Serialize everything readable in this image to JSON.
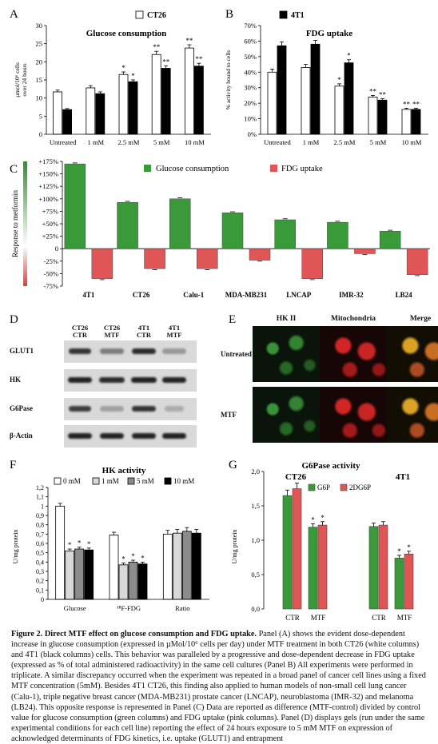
{
  "panelA": {
    "letter": "A",
    "title": "Glucose consumption",
    "legend": "CT26",
    "ylabel_lines": [
      "µmol/10⁶ cells",
      "over 24 hours"
    ],
    "yticks": [
      "0",
      "5",
      "10",
      "15",
      "20",
      "25",
      "30"
    ],
    "chart_data": {
      "type": "bar",
      "categories": [
        "Untreated",
        "1 mM",
        "2.5 mM",
        "5 mM",
        "10 mM"
      ],
      "series": [
        {
          "name": "CT26",
          "color": "#ffffff",
          "values": [
            11.7,
            12.8,
            16.5,
            22.0,
            23.8
          ],
          "err": [
            0.5,
            0.6,
            0.7,
            0.9,
            0.9
          ],
          "stars": [
            "",
            "",
            "*",
            "**",
            "**"
          ]
        },
        {
          "color": "#000000",
          "values": [
            6.8,
            11.2,
            14.5,
            18.2,
            18.8
          ],
          "err": [
            0.3,
            0.5,
            0.5,
            0.7,
            0.8
          ],
          "stars": [
            "",
            "",
            "*",
            "**",
            "**"
          ]
        }
      ],
      "ylim": [
        0,
        30
      ]
    }
  },
  "panelB": {
    "letter": "B",
    "title": "FDG uptake",
    "legend": "4T1",
    "ylabel": "% activity bound to cells",
    "yticks": [
      "0%",
      "5%",
      "10%",
      "15%",
      "20%",
      "25%",
      "30%",
      "35%",
      "40%",
      "45%",
      "50%",
      "55%",
      "60%",
      "65%",
      "70%"
    ],
    "yticks_shown": [
      "0%",
      "10%",
      "20%",
      "30%",
      "40%",
      "50%",
      "60%",
      "70%"
    ],
    "chart_data": {
      "type": "bar",
      "categories": [
        "Untreated",
        "1 mM",
        "2.5 mM",
        "5 mM",
        "10 mM"
      ],
      "series": [
        {
          "color": "#ffffff",
          "values": [
            40,
            43,
            31,
            24,
            16
          ],
          "err": [
            2,
            2,
            1.5,
            1,
            0.8
          ],
          "stars": [
            "",
            "",
            "*",
            "**",
            "**"
          ]
        },
        {
          "name": "4T1",
          "color": "#000000",
          "values": [
            57,
            58,
            46,
            22,
            16
          ],
          "err": [
            2.5,
            2.5,
            2,
            1,
            0.8
          ],
          "stars": [
            "",
            "",
            "*",
            "**",
            "**"
          ]
        }
      ],
      "ylim": [
        0,
        70
      ]
    }
  },
  "panelC": {
    "letter": "C",
    "legend_green": "Glucose consumption",
    "legend_red": "FDG uptake",
    "ylabel": "Response to metformin",
    "yticks": [
      "+175%",
      "+150%",
      "+125%",
      "+100%",
      "+75%",
      "+50%",
      "+25%",
      "0",
      "-25%",
      "-50%",
      "-75%"
    ],
    "chart_data": {
      "type": "bar",
      "categories": [
        "4T1",
        "CT26",
        "Calu-1",
        "MDA-MB231",
        "LNCAP",
        "IMR-32",
        "LB24"
      ],
      "series": [
        {
          "name": "Glucose consumption",
          "color": "#3a9a3a",
          "values": [
            170,
            93,
            100,
            72,
            58,
            53,
            35
          ]
        },
        {
          "name": "FDG uptake",
          "color": "#e05555",
          "values": [
            -60,
            -40,
            -40,
            -23,
            -60,
            -10,
            -52
          ]
        }
      ],
      "ylim": [
        -75,
        175
      ]
    }
  },
  "panelD": {
    "letter": "D",
    "columns": [
      "CT26\nCTR",
      "CT26\nMTF",
      "4T1\nCTR",
      "4T1\nMTF"
    ],
    "col_top": [
      "CT26",
      "CT26",
      "4T1",
      "4T1"
    ],
    "col_bot": [
      "CTR",
      "MTF",
      "CTR",
      "MTF"
    ],
    "rows": [
      "GLUT1",
      "HK",
      "G6Pase",
      "β-Actin"
    ]
  },
  "panelE": {
    "letter": "E",
    "col_labels": [
      "HK II",
      "Mitochondria",
      "Merge"
    ],
    "row_labels": [
      "Untreated",
      "MTF"
    ]
  },
  "panelF": {
    "letter": "F",
    "title": "HK activity",
    "ylabel": "U/mg protein",
    "yticks": [
      "0",
      "0,1",
      "0,2",
      "0,3",
      "0,4",
      "0,5",
      "0,6",
      "0,7",
      "0,8",
      "0,9",
      "1",
      "1,1",
      "1,2"
    ],
    "legend": [
      "0 mM",
      "1 mM",
      "5 mM",
      "10 mM"
    ],
    "chart_data": {
      "type": "bar",
      "categories": [
        "Glucose",
        "¹⁸F-FDG",
        "Ratio"
      ],
      "series": [
        {
          "name": "0 mM",
          "color": "#ffffff",
          "values": [
            1.0,
            0.69,
            0.7
          ],
          "err": [
            0.03,
            0.03,
            0.04
          ],
          "stars": [
            "",
            "",
            ""
          ]
        },
        {
          "name": "1 mM",
          "color": "#d9d9d9",
          "values": [
            0.52,
            0.37,
            0.71
          ],
          "err": [
            0.02,
            0.02,
            0.04
          ],
          "stars": [
            "*",
            "*",
            ""
          ]
        },
        {
          "name": "5 mM",
          "color": "#8c8c8c",
          "values": [
            0.54,
            0.4,
            0.73
          ],
          "err": [
            0.02,
            0.02,
            0.04
          ],
          "stars": [
            "*",
            "*",
            ""
          ]
        },
        {
          "name": "10 mM",
          "color": "#000000",
          "values": [
            0.53,
            0.38,
            0.71
          ],
          "err": [
            0.02,
            0.02,
            0.04
          ],
          "stars": [
            "*",
            "*",
            ""
          ]
        }
      ],
      "ylim": [
        0,
        1.2
      ]
    }
  },
  "panelG": {
    "letter": "G",
    "title": "G6Pase activity",
    "group_left": "CT26",
    "group_right": "4T1",
    "ylabel": "U/mg protein",
    "yticks": [
      "0,0",
      "0,5",
      "1,0",
      "1,5",
      "2,0"
    ],
    "legend": [
      "G6P",
      "2DG6P"
    ],
    "chart_data": {
      "type": "bar",
      "categories": [
        "CTR",
        "MTF",
        "CTR",
        "MTF"
      ],
      "series": [
        {
          "name": "G6P",
          "color": "#3a9a3a",
          "values": [
            1.65,
            1.19,
            1.2,
            0.74
          ],
          "err": [
            0.08,
            0.05,
            0.05,
            0.04
          ],
          "stars": [
            "",
            "*",
            "",
            "*"
          ]
        },
        {
          "name": "2DG6P",
          "color": "#e05555",
          "values": [
            1.75,
            1.22,
            1.22,
            0.8
          ],
          "err": [
            0.08,
            0.05,
            0.05,
            0.04
          ],
          "stars": [
            "",
            "*",
            "",
            "*"
          ]
        }
      ],
      "ylim": [
        0,
        2.0
      ]
    }
  },
  "caption": {
    "label": "Figure 2.",
    "title": "Direct MTF effect on glucose consumption and FDG uptake.",
    "body": " Panel (A) shows the evident dose-dependent increase in glucose consumption (expressed in µMol/10⁶ cells per day) under MTF treatment in both CT26 (white columns) and 4T1 (black columns) cells. This behavior was paralleled by a progressive and dose-dependent decrease in FDG uptake (expressed as % of total administered radioactivity) in the same cell cultures (Panel B) All experiments were performed in triplicate. A similar discrepancy occurred when the experiment was repeated in a broad panel of cancer cell lines using a fixed MTF concentration (5mM). Besides 4T1 CT26, this finding also applied to human models of non-small cell lung cancer (Calu-1), triple negative breast cancer (MDA-MB231) prostate cancer (LNCAP), neuroblastoma (IMR-32) and melanoma (LB24). This opposite response is represented in Panel (C) Data are reported as difference (MTF-control) divided by control value for glucose consumption (green columns) and FDG uptake (pink columns). Panel (D) displays gels (run under the same experimental conditions for each cell line) reporting the effect of 24 hours exposure to 5 mM MTF on expression of acknowledged determinants of FDG kinetics, i.e. uptake (GLUT1) and entrapment"
  }
}
